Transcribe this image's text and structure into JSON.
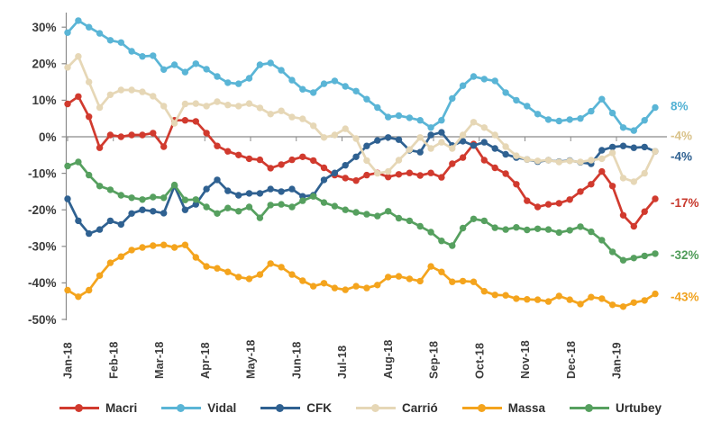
{
  "chart_data": {
    "type": "line",
    "title": "",
    "legend_position": "bottom",
    "grid": "none",
    "axis_color": "#8a8a8a",
    "x_axis": {
      "months": [
        "Jan-18",
        "Feb-18",
        "Mar-18",
        "Apr-18",
        "May-18",
        "Jun-18",
        "Jul-18",
        "Aug-18",
        "Sep-18",
        "Oct-18",
        "Nov-18",
        "Dec-18",
        "Jan-19"
      ]
    },
    "y_axis": {
      "tick_labels": [
        "30%",
        "20%",
        "10%",
        "0%",
        "-10%",
        "-20%",
        "-30%",
        "-40%",
        "-50%"
      ],
      "tick_values": [
        30,
        20,
        10,
        0,
        -10,
        -20,
        -30,
        -40,
        -50
      ],
      "ylim": [
        -50,
        33
      ]
    },
    "series": [
      {
        "id": "macri",
        "name": "Macri",
        "color": "#d13a2e",
        "label_color": "#c8392d",
        "end_label": "-17%",
        "end_label_value": -18,
        "values": [
          9,
          11,
          5.5,
          -3,
          0.5,
          0,
          0.5,
          0.5,
          1,
          -2.7,
          4.5,
          4.5,
          4.2,
          1,
          -2.5,
          -4,
          -5,
          -6,
          -6.3,
          -8.6,
          -7.6,
          -6.3,
          -5.5,
          -6.5,
          -8.5,
          -10.5,
          -11.3,
          -12,
          -10.5,
          -9.9,
          -11,
          -10.3,
          -9.9,
          -10.6,
          -9.9,
          -11.1,
          -7.4,
          -5.7,
          -2,
          -6.4,
          -8.5,
          -10.1,
          -13,
          -17.5,
          -19.2,
          -18.5,
          -18.2,
          -17.2,
          -15,
          -13,
          -9.5,
          -13.5,
          -21.5,
          -24.5,
          -20.5,
          -17
        ]
      },
      {
        "id": "vidal",
        "name": "Vidal",
        "color": "#5ab5d6",
        "label_color": "#52b2d4",
        "end_label": "8%",
        "end_label_value": 8.4,
        "values": [
          28.5,
          31.8,
          30,
          28.3,
          26.4,
          25.8,
          23.4,
          22,
          22.2,
          18.4,
          19.7,
          17.7,
          20,
          18.5,
          16.5,
          14.8,
          14.5,
          16,
          19.7,
          20.2,
          18.2,
          15.5,
          13,
          12.1,
          14.5,
          15.3,
          13.8,
          12.5,
          10.3,
          8,
          5.4,
          5.8,
          5.2,
          4.5,
          2.5,
          4.5,
          10.5,
          14,
          16.5,
          15.8,
          15.3,
          12.1,
          10,
          8.4,
          6.2,
          4.7,
          4.3,
          4.7,
          5,
          7,
          10.3,
          6.5,
          2.5,
          1.7,
          4.5,
          8
        ]
      },
      {
        "id": "cfk",
        "name": "CFK",
        "color": "#2f6191",
        "label_color": "#2f6191",
        "end_label": "-4%",
        "end_label_value": -5.4,
        "values": [
          -17,
          -23,
          -26.5,
          -25.4,
          -23,
          -24,
          -21,
          -20,
          -20.4,
          -20.9,
          -13.5,
          -20,
          -18.5,
          -14.3,
          -11.8,
          -14.8,
          -16,
          -15.5,
          -15.5,
          -14.3,
          -15,
          -14.3,
          -16.3,
          -16,
          -11.8,
          -9.9,
          -7.8,
          -5.5,
          -2.5,
          -1,
          -0.2,
          -0.8,
          -3.7,
          -4.2,
          0.5,
          1.2,
          -2.4,
          -1.2,
          -2.4,
          -1.5,
          -3.2,
          -4.8,
          -5.7,
          -6.2,
          -6.8,
          -6.4,
          -6.8,
          -6.5,
          -7,
          -7.4,
          -3.7,
          -2.8,
          -2.5,
          -3,
          -2.8,
          -4
        ]
      },
      {
        "id": "carrio",
        "name": "Carrió",
        "color": "#e6d7b6",
        "label_color": "#d9c289",
        "end_label": "-4%",
        "end_label_value": 0.3,
        "values": [
          19,
          22,
          15,
          8,
          11.5,
          12.8,
          12.8,
          12.3,
          11.1,
          8.4,
          3.7,
          9,
          9.1,
          8.4,
          9.6,
          8.7,
          8.4,
          9.1,
          7.9,
          6.2,
          7.1,
          5.4,
          4.9,
          3,
          -0.2,
          0.5,
          2.2,
          -0.5,
          -6.5,
          -10,
          -9.5,
          -6.4,
          -3.5,
          -0.2,
          -3.2,
          -1.5,
          -3.2,
          0.5,
          4,
          2.5,
          0.5,
          -2.7,
          -5.2,
          -6.2,
          -6.6,
          -6.4,
          -6.9,
          -6.6,
          -6.9,
          -6.4,
          -6,
          -4.4,
          -11.3,
          -12.3,
          -10,
          -4
        ]
      },
      {
        "id": "massa",
        "name": "Massa",
        "color": "#f4a41d",
        "label_color": "#f0a21e",
        "end_label": "-43%",
        "end_label_value": -43.8,
        "values": [
          -42,
          -43.8,
          -42,
          -38,
          -34.5,
          -32.8,
          -31,
          -30.3,
          -29.8,
          -29.6,
          -30.3,
          -29.6,
          -33,
          -35.5,
          -36,
          -37,
          -38.4,
          -38.9,
          -37.7,
          -34.7,
          -35.7,
          -37.7,
          -39.4,
          -40.9,
          -40.1,
          -41.4,
          -41.9,
          -40.9,
          -41.4,
          -40.6,
          -38.4,
          -38.2,
          -38.9,
          -39.5,
          -35.5,
          -37,
          -39.7,
          -39.5,
          -39.7,
          -42.3,
          -43.3,
          -43.4,
          -44.3,
          -44.5,
          -44.6,
          -45.1,
          -43.6,
          -44.6,
          -45.8,
          -43.9,
          -44.3,
          -46,
          -46.5,
          -45.4,
          -44.8,
          -43
        ]
      },
      {
        "id": "urtubey",
        "name": "Urtubey",
        "color": "#56a05f",
        "label_color": "#4f9c59",
        "end_label": "-32%",
        "end_label_value": -32.3,
        "values": [
          -8,
          -6.9,
          -10.5,
          -13.5,
          -14.5,
          -16,
          -16.7,
          -17.2,
          -16.5,
          -16.7,
          -13.2,
          -17.3,
          -17.2,
          -19.2,
          -21,
          -19.5,
          -20.4,
          -19.2,
          -22.2,
          -18.7,
          -18.5,
          -19.2,
          -17.5,
          -16.3,
          -18,
          -19,
          -20,
          -20.7,
          -21.2,
          -21.7,
          -20.4,
          -22.3,
          -23,
          -24.5,
          -26.1,
          -28.5,
          -29.8,
          -25,
          -22.5,
          -23,
          -24.9,
          -25.4,
          -24.8,
          -25.5,
          -25.2,
          -25.4,
          -26.2,
          -25.6,
          -24.6,
          -26,
          -28.3,
          -31.5,
          -33.8,
          -33.2,
          -32.6,
          -32
        ]
      }
    ]
  }
}
